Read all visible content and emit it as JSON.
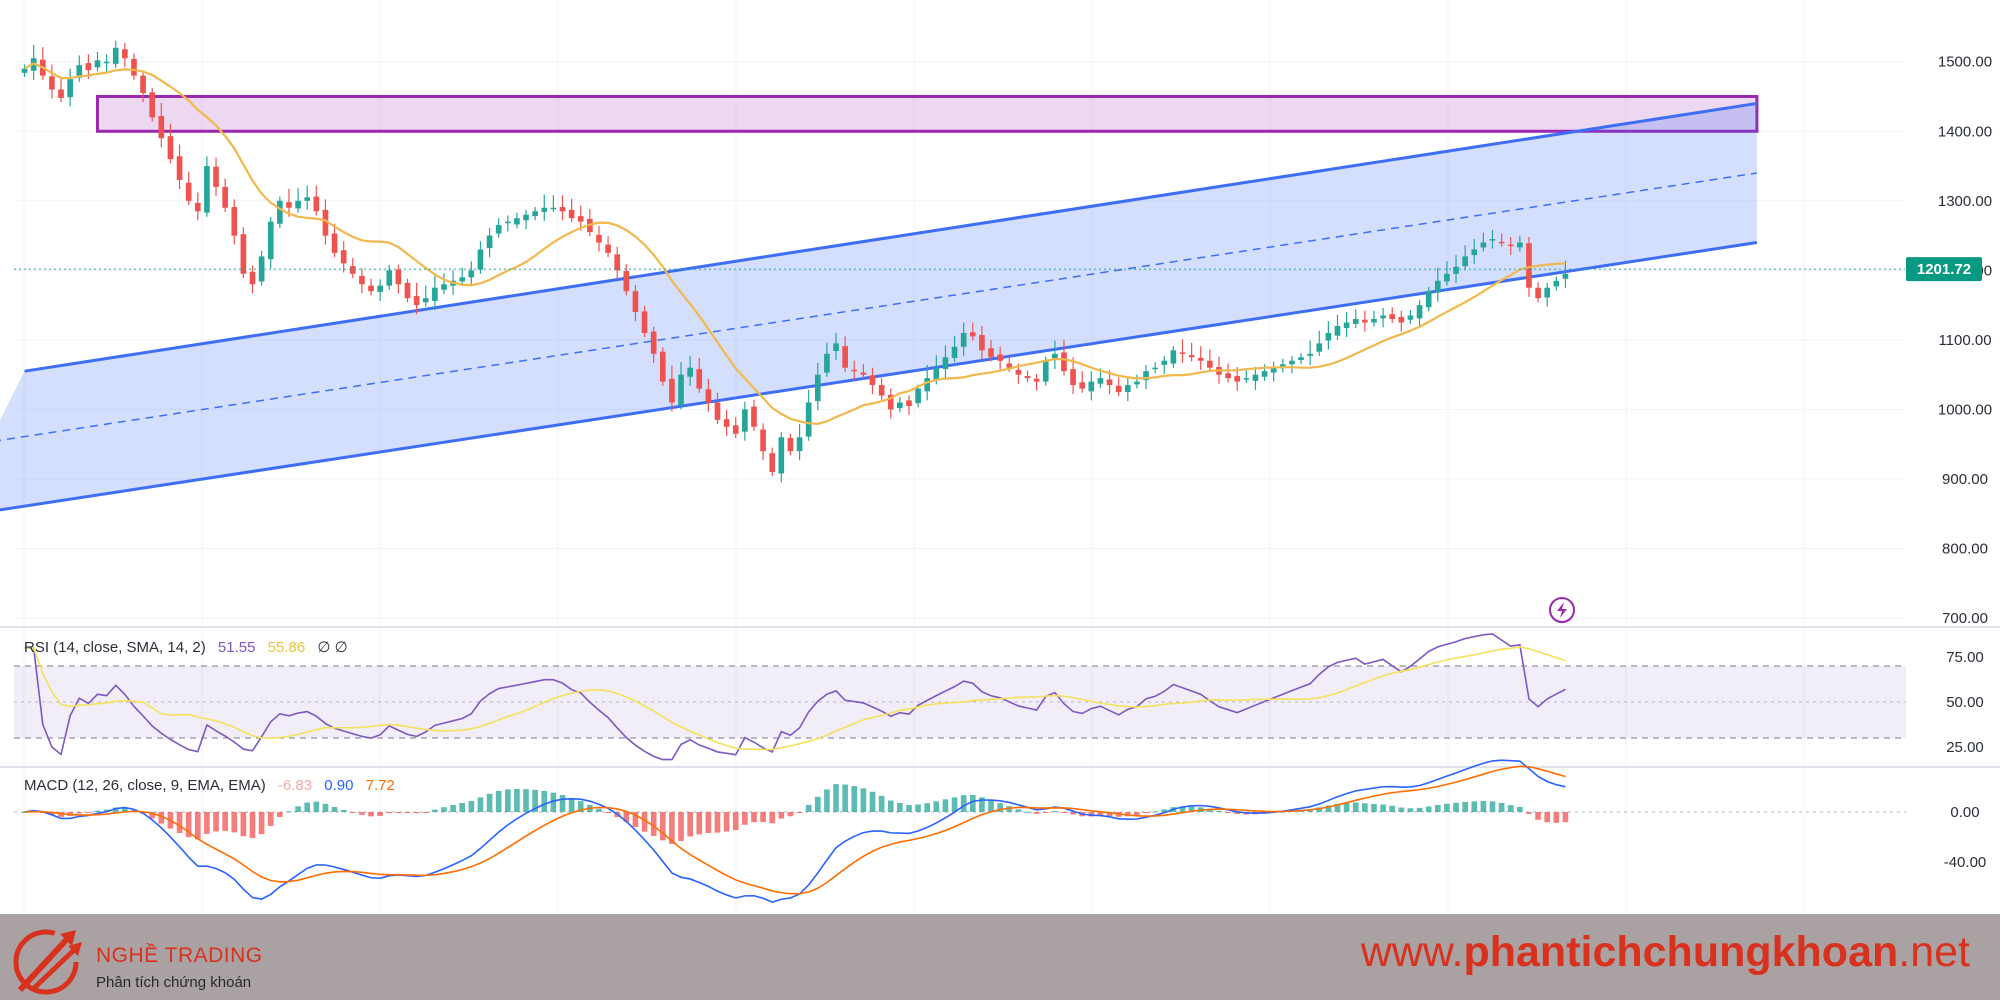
{
  "chart_data": {
    "type": "candlestick",
    "price_axis": {
      "ticks": [
        "1500.00",
        "1400.00",
        "1300.00",
        "1200.00",
        "1100.00",
        "1000.00",
        "900.00",
        "800.00",
        "700.00"
      ],
      "tick_values": [
        1500,
        1400,
        1300,
        1200,
        1100,
        1000,
        900,
        800,
        700
      ],
      "range": [
        690,
        1560
      ]
    },
    "last_price": "1201.72",
    "price_line": 1201.72,
    "close_series": [
      1490,
      1505,
      1480,
      1460,
      1448,
      1475,
      1495,
      1488,
      1502,
      1500,
      1520,
      1505,
      1480,
      1455,
      1420,
      1390,
      1360,
      1330,
      1300,
      1285,
      1350,
      1320,
      1290,
      1250,
      1195,
      1180,
      1220,
      1270,
      1300,
      1290,
      1300,
      1305,
      1285,
      1250,
      1225,
      1210,
      1195,
      1180,
      1170,
      1178,
      1200,
      1180,
      1160,
      1150,
      1160,
      1175,
      1180,
      1185,
      1190,
      1200,
      1230,
      1250,
      1265,
      1270,
      1275,
      1280,
      1285,
      1290,
      1290,
      1285,
      1275,
      1270,
      1255,
      1240,
      1225,
      1200,
      1170,
      1140,
      1110,
      1080,
      1040,
      1010,
      1050,
      1060,
      1030,
      1010,
      985,
      975,
      965,
      1000,
      975,
      940,
      910,
      960,
      940,
      960,
      1010,
      1050,
      1080,
      1095,
      1060,
      1055,
      1050,
      1035,
      1020,
      1000,
      1010,
      1005,
      1030,
      1045,
      1060,
      1075,
      1090,
      1110,
      1105,
      1085,
      1075,
      1070,
      1060,
      1050,
      1045,
      1040,
      1070,
      1080,
      1055,
      1035,
      1030,
      1040,
      1045,
      1035,
      1025,
      1035,
      1040,
      1055,
      1060,
      1070,
      1085,
      1080,
      1075,
      1070,
      1060,
      1050,
      1045,
      1040,
      1045,
      1050,
      1055,
      1060,
      1065,
      1070,
      1075,
      1080,
      1095,
      1110,
      1120,
      1125,
      1130,
      1125,
      1130,
      1135,
      1130,
      1125,
      1135,
      1150,
      1170,
      1185,
      1195,
      1205,
      1220,
      1230,
      1240,
      1245,
      1240,
      1235,
      1240,
      1175,
      1160,
      1175,
      1185,
      1195
    ],
    "sma_overlay": {
      "name": "MA"
    },
    "channel": {
      "upper": {
        "from": [
          0,
          1055
        ],
        "to": [
          190,
          1440
        ]
      },
      "lower": {
        "from": [
          -8,
          845
        ],
        "to": [
          190,
          1240
        ]
      },
      "mid": {
        "from": [
          -8,
          945
        ],
        "to": [
          190,
          1340
        ]
      },
      "fill": "#3d6ef5"
    },
    "resistance_zone": {
      "from_index": 8,
      "to_index": 190,
      "top": 1450,
      "bottom": 1400,
      "color": "#9c27b0"
    },
    "lightning_icon": "lightning-bolt-icon",
    "rsi": {
      "label": "RSI (14, close, SMA, 14, 2)",
      "value": "51.55",
      "sma_value": "55.86",
      "extra": "∅ ∅",
      "ticks": [
        "75.00",
        "50.00",
        "25.00"
      ],
      "tick_values": [
        75,
        50,
        25
      ],
      "upper_band": 70,
      "lower_band": 30,
      "line_color": "#7e57c2",
      "sma_color": "#f5e15b"
    },
    "macd": {
      "label": "MACD (12, 26, close, 9, EMA, EMA)",
      "hist_value": "-6.83",
      "macd_value": "0.90",
      "signal_value": "7.72",
      "ticks": [
        "0.00",
        "-40.00"
      ],
      "tick_values": [
        0,
        -40
      ],
      "macd_color": "#2962ff",
      "signal_color": "#ff6d00"
    },
    "colors": {
      "up": "#26a69a",
      "down": "#ef5350",
      "ma": "#f2b84b"
    }
  },
  "footer": {
    "brand_name": "NGHỀ TRADING",
    "tagline": "Phân tích chứng khoán",
    "site_prefix": "www.",
    "site_main": "phantichchungkhoan",
    "site_suffix": ".net",
    "logo_icon": "arrows-logo-icon"
  }
}
